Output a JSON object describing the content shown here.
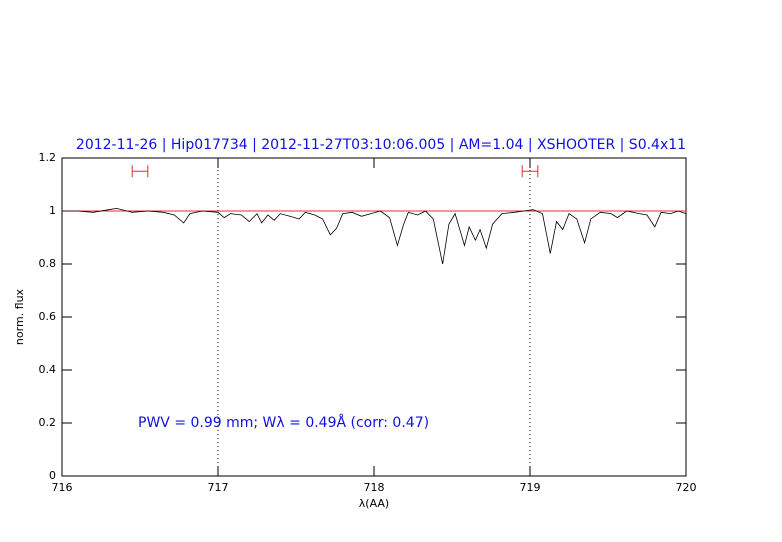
{
  "chart_data": {
    "type": "line",
    "title": "2012-11-26 | Hip017734 | 2012-11-27T03:10:06.005 | AM=1.04 | XSHOOTER | S0.4x11",
    "annotation": "PWV = 0.99 mm; Wλ = 0.49Å (corr: 0.47)",
    "x_label": "λ(AA)",
    "y_label": "norm. flux",
    "xlim": [
      716,
      720
    ],
    "ylim": [
      0,
      1.2
    ],
    "xticks": [
      716,
      717,
      718,
      719,
      720
    ],
    "yticks": [
      0,
      0.2,
      0.4,
      0.6,
      0.8,
      1,
      1.2
    ],
    "vlines": [
      717,
      719
    ],
    "hline": 1,
    "hline_color": "#e03030",
    "intervals": [
      {
        "x": [
          716.45,
          716.55
        ],
        "y": 1.15
      },
      {
        "x": [
          718.95,
          719.05
        ],
        "y": 1.15
      }
    ],
    "interval_color": "#e03030",
    "series": [
      {
        "color": "#000000",
        "x": [
          716.0,
          716.1,
          716.2,
          716.3,
          716.35,
          716.45,
          716.55,
          716.65,
          716.72,
          716.78,
          716.82,
          716.9,
          717.0,
          717.04,
          717.08,
          717.15,
          717.2,
          717.25,
          717.28,
          717.32,
          717.36,
          717.4,
          717.46,
          717.52,
          717.56,
          717.62,
          717.67,
          717.72,
          717.76,
          717.8,
          717.86,
          717.92,
          717.98,
          718.04,
          718.1,
          718.15,
          718.19,
          718.22,
          718.28,
          718.33,
          718.38,
          718.44,
          718.48,
          718.52,
          718.58,
          718.61,
          718.65,
          718.68,
          718.72,
          718.76,
          718.82,
          718.9,
          718.96,
          719.02,
          719.08,
          719.13,
          719.17,
          719.21,
          719.25,
          719.3,
          719.35,
          719.39,
          719.45,
          719.52,
          719.56,
          719.62,
          719.7,
          719.75,
          719.8,
          719.84,
          719.9,
          719.95,
          720.0
        ],
        "values": [
          1.0,
          1.0,
          0.995,
          1.005,
          1.01,
          0.995,
          1.0,
          0.995,
          0.985,
          0.955,
          0.99,
          1.0,
          0.995,
          0.975,
          0.99,
          0.985,
          0.96,
          0.99,
          0.955,
          0.985,
          0.965,
          0.99,
          0.98,
          0.97,
          0.995,
          0.985,
          0.97,
          0.91,
          0.935,
          0.99,
          0.995,
          0.98,
          0.99,
          1.0,
          0.975,
          0.87,
          0.95,
          0.995,
          0.985,
          1.0,
          0.97,
          0.8,
          0.95,
          0.99,
          0.87,
          0.94,
          0.89,
          0.93,
          0.86,
          0.95,
          0.99,
          0.995,
          1.0,
          1.005,
          0.99,
          0.84,
          0.96,
          0.93,
          0.99,
          0.97,
          0.88,
          0.97,
          0.995,
          0.99,
          0.975,
          1.0,
          0.99,
          0.985,
          0.94,
          0.995,
          0.99,
          1.0,
          0.99
        ]
      }
    ]
  }
}
